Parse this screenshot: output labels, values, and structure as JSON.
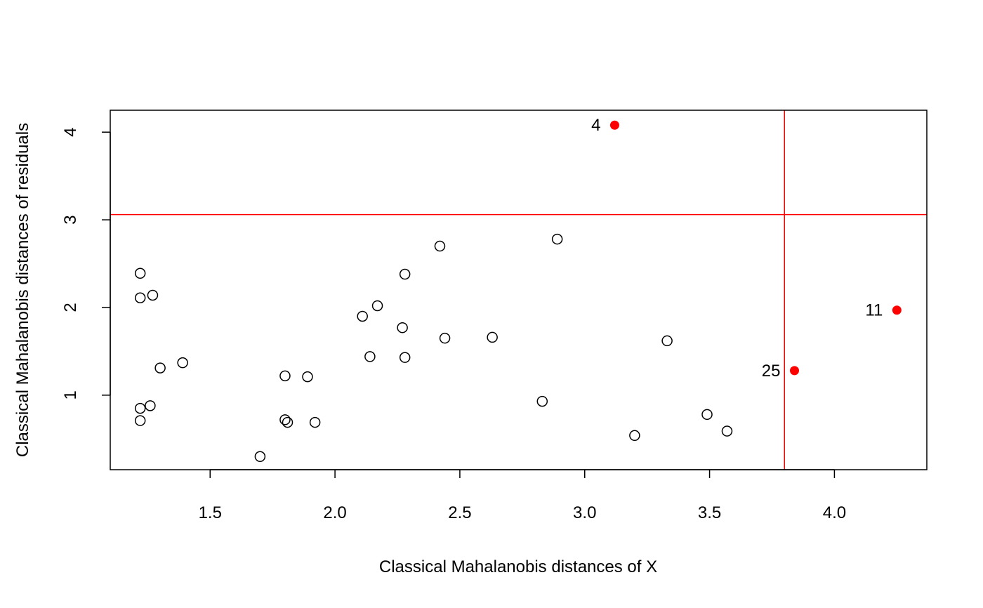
{
  "chart_data": {
    "type": "scatter",
    "xlabel": "Classical Mahalanobis distances of X",
    "ylabel": "Classical Mahalanobis distances of residuals",
    "xlim": [
      1.1,
      4.37
    ],
    "ylim": [
      0.15,
      4.25
    ],
    "x_ticks": [
      "1.5",
      "2.0",
      "2.5",
      "3.0",
      "3.5",
      "4.0"
    ],
    "y_ticks": [
      "1",
      "2",
      "3",
      "4"
    ],
    "grid": false,
    "cutoff_x": 3.8,
    "cutoff_y": 3.06,
    "cutoff_color": "#ff0000",
    "outlier_color": "#ff0000",
    "points": [
      {
        "x": 1.22,
        "y": 2.39
      },
      {
        "x": 1.22,
        "y": 2.11
      },
      {
        "x": 1.27,
        "y": 2.14
      },
      {
        "x": 1.3,
        "y": 1.31
      },
      {
        "x": 1.39,
        "y": 1.37
      },
      {
        "x": 1.22,
        "y": 0.85
      },
      {
        "x": 1.26,
        "y": 0.88
      },
      {
        "x": 1.22,
        "y": 0.71
      },
      {
        "x": 1.7,
        "y": 0.3
      },
      {
        "x": 1.8,
        "y": 1.22
      },
      {
        "x": 1.8,
        "y": 0.72
      },
      {
        "x": 1.81,
        "y": 0.69
      },
      {
        "x": 1.89,
        "y": 1.21
      },
      {
        "x": 1.92,
        "y": 0.69
      },
      {
        "x": 2.11,
        "y": 1.9
      },
      {
        "x": 2.14,
        "y": 1.44
      },
      {
        "x": 2.17,
        "y": 2.02
      },
      {
        "x": 2.27,
        "y": 1.77
      },
      {
        "x": 2.28,
        "y": 1.43
      },
      {
        "x": 2.28,
        "y": 2.38
      },
      {
        "x": 2.42,
        "y": 2.7
      },
      {
        "x": 2.44,
        "y": 1.65
      },
      {
        "x": 2.63,
        "y": 1.66
      },
      {
        "x": 2.83,
        "y": 0.93
      },
      {
        "x": 2.89,
        "y": 2.78
      },
      {
        "x": 3.2,
        "y": 0.54
      },
      {
        "x": 3.33,
        "y": 1.62
      },
      {
        "x": 3.49,
        "y": 0.78
      },
      {
        "x": 3.57,
        "y": 0.59
      }
    ],
    "outliers": [
      {
        "x": 3.12,
        "y": 4.08,
        "label": "4"
      },
      {
        "x": 4.25,
        "y": 1.97,
        "label": "11"
      },
      {
        "x": 3.84,
        "y": 1.28,
        "label": "25"
      }
    ]
  }
}
